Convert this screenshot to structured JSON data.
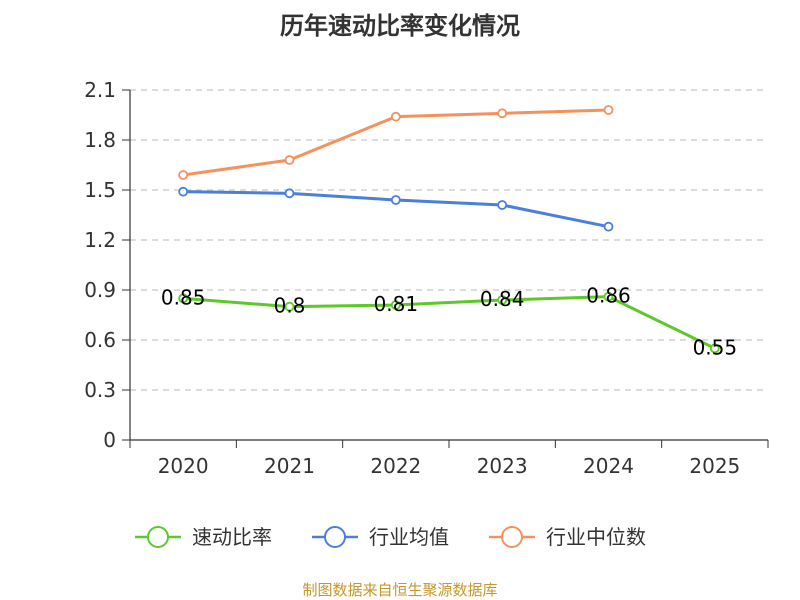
{
  "chart_data": {
    "type": "line",
    "title": "历年速动比率变化情况",
    "categories": [
      "2020",
      "2021",
      "2022",
      "2023",
      "2024",
      "2025"
    ],
    "ylim": [
      0,
      2.1
    ],
    "yticks": [
      0,
      0.3,
      0.6,
      0.9,
      1.2,
      1.5,
      1.8,
      2.1
    ],
    "ytick_labels": [
      "0",
      "0.3",
      "0.6",
      "0.9",
      "1.2",
      "1.5",
      "1.8",
      "2.1"
    ],
    "grid": true,
    "legend_position": "bottom",
    "series": [
      {
        "name": "速动比率",
        "color": "#5cc82a",
        "values": [
          0.85,
          0.8,
          0.81,
          0.84,
          0.86,
          0.55
        ],
        "labels": [
          "0.85",
          "0.8",
          "0.81",
          "0.84",
          "0.86",
          "0.55"
        ],
        "show_labels": true
      },
      {
        "name": "行业均值",
        "color": "#4a7fdc",
        "values": [
          1.49,
          1.48,
          1.44,
          1.41,
          1.28,
          null
        ],
        "show_labels": false
      },
      {
        "name": "行业中位数",
        "color": "#f5915c",
        "values": [
          1.59,
          1.68,
          1.94,
          1.96,
          1.98,
          null
        ],
        "show_labels": false
      }
    ]
  },
  "source": "制图数据来自恒生聚源数据库"
}
